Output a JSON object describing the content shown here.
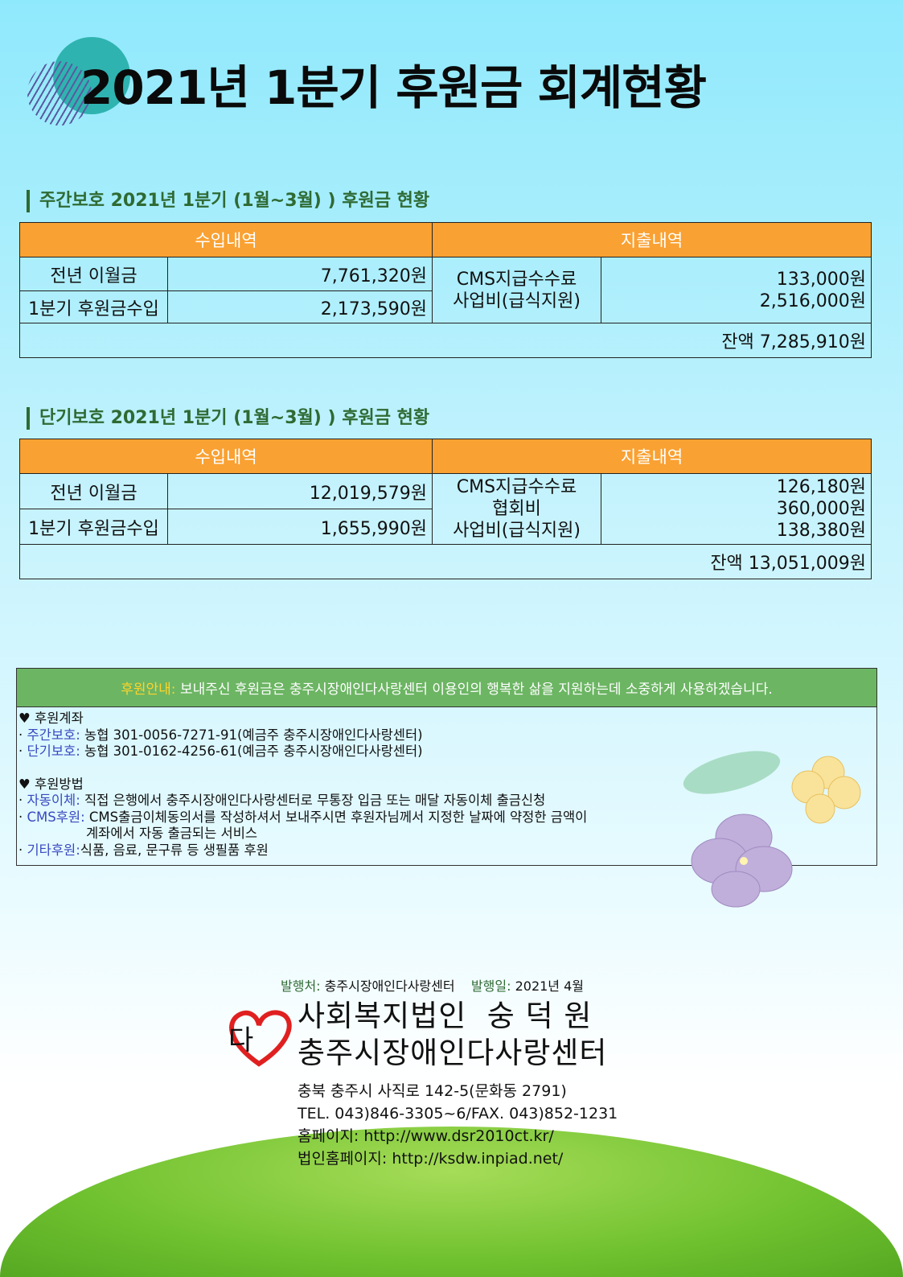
{
  "title": "2021년 1분기 후원금 회계현황",
  "colors": {
    "header_orange": "#f9a132",
    "heading_green": "#2f6a33",
    "info_green": "#6cb563",
    "label_blue": "#3a49c0"
  },
  "sections": [
    {
      "heading": "주간보호 2021년 1분기 (1월~3월) ) 후원금 현황",
      "income_header": "수입내역",
      "expense_header": "지출내역",
      "income": [
        {
          "label": "전년 이월금",
          "amount": "7,761,320원"
        },
        {
          "label": "1분기 후원금수입",
          "amount": "2,173,590원"
        }
      ],
      "expenses": [
        {
          "label": "CMS지급수수료",
          "amount": "133,000원"
        },
        {
          "label": "사업비(급식지원)",
          "amount": "2,516,000원"
        }
      ],
      "balance": "잔액 7,285,910원"
    },
    {
      "heading": "단기보호 2021년 1분기 (1월~3월) ) 후원금 현황",
      "income_header": "수입내역",
      "expense_header": "지출내역",
      "income": [
        {
          "label": "전년 이월금",
          "amount": "12,019,579원"
        },
        {
          "label": "1분기 후원금수입",
          "amount": "1,655,990원"
        }
      ],
      "expenses": [
        {
          "label": "CMS지급수수료",
          "amount": "126,180원"
        },
        {
          "label": "협회비",
          "amount": "360,000원"
        },
        {
          "label": "사업비(급식지원)",
          "amount": "138,380원"
        }
      ],
      "balance": "잔액 13,051,009원"
    }
  ],
  "info": {
    "header_label": "후원안내:",
    "header_text": "보내주신 후원금은 충주시장애인다사랑센터 이용인의 행복한 삶을 지원하는데 소중하게 사용하겠습니다.",
    "accounts_title": "♥ 후원계좌",
    "accounts": [
      {
        "label": "주간보호:",
        "text": "농협 301-0056-7271-91(예금주 충주시장애인다사랑센터)"
      },
      {
        "label": "단기보호:",
        "text": "농협 301-0162-4256-61(예금주 충주시장애인다사랑센터)"
      }
    ],
    "methods_title": "♥ 후원방법",
    "methods": [
      {
        "label": "자동이체:",
        "text": "직접 은행에서 충주시장애인다사랑센터로 무통장 입금 또는 매달 자동이체 출금신청"
      },
      {
        "label": "CMS후원:",
        "text": "CMS출금이체동의서를 작성하셔서 보내주시면 후원자님께서 지정한 날짜에 약정한 금액이",
        "cont": "계좌에서 자동 출금되는 서비스"
      },
      {
        "label": "기타후원:",
        "text": "식품, 음료, 문구류 등 생필품 후원"
      }
    ]
  },
  "footer": {
    "publisher_label": "발행처:",
    "publisher": "충주시장애인다사랑센터",
    "date_label": "발행일:",
    "date": "2021년 4월",
    "org1": "사회복지법인  숭 덕 원",
    "org2": "충주시장애인다사랑센터",
    "logo_text": "다",
    "address": "충북 충주시 사직로 142-5(문화동 2791)",
    "tel": "TEL. 043)846-3305~6/FAX. 043)852-1231",
    "homepage": "홈페이지: http://www.dsr2010ct.kr/",
    "corp_homepage": "법인홈페이지:  http://ksdw.inpiad.net/"
  }
}
